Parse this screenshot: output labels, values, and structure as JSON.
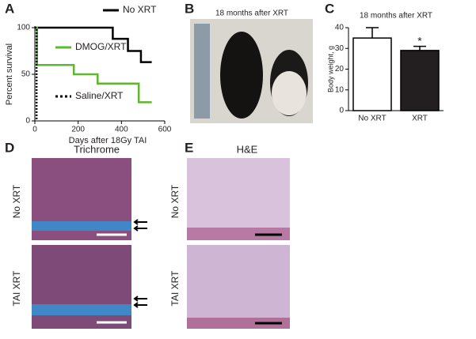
{
  "chart_data": [
    {
      "type": "line",
      "ylabel": "Percent survival",
      "xlabel": "Days after 18Gy TAI",
      "xlim": [
        0,
        600
      ],
      "xticks": [
        0,
        200,
        400,
        600
      ],
      "ylim": [
        0,
        100
      ],
      "yticks": [
        0,
        50,
        100
      ],
      "series": [
        {
          "name": "No XRT",
          "color": "#000000",
          "x": [
            0,
            360,
            360,
            430,
            430,
            490,
            490,
            540
          ],
          "values": [
            100,
            100,
            88,
            88,
            75,
            75,
            63,
            63
          ]
        },
        {
          "name": "DMOG/XRT",
          "color": "#5cb82e",
          "x": [
            0,
            10,
            10,
            180,
            180,
            290,
            290,
            480,
            480,
            540
          ],
          "values": [
            100,
            100,
            60,
            60,
            50,
            50,
            40,
            40,
            20,
            20
          ]
        },
        {
          "name": "Saline/XRT",
          "color": "#000000",
          "dash": true,
          "x": [
            0,
            8,
            8
          ],
          "values": [
            100,
            100,
            0
          ]
        }
      ]
    },
    {
      "type": "bar",
      "title": "18 months after XRT",
      "ylabel": "Body weight, g",
      "categories": [
        "No XRT",
        "XRT"
      ],
      "values": [
        35,
        29
      ],
      "errors": [
        5,
        2
      ],
      "colors": [
        "#ffffff",
        "#231f20"
      ],
      "ylim": [
        0,
        40
      ],
      "yticks": [
        0,
        10,
        20,
        30,
        40
      ],
      "annotations": [
        {
          "category": "XRT",
          "text": "*"
        }
      ]
    }
  ],
  "panels": {
    "letters": [
      "A",
      "B",
      "C",
      "D",
      "E"
    ],
    "B": {
      "title": "18 months after XRT"
    },
    "D": {
      "title": "Trichrome",
      "rows": [
        "No XRT",
        "TAI XRT"
      ]
    },
    "E": {
      "title": "H&E",
      "rows": [
        "No XRT",
        "TAI XRT"
      ]
    }
  }
}
